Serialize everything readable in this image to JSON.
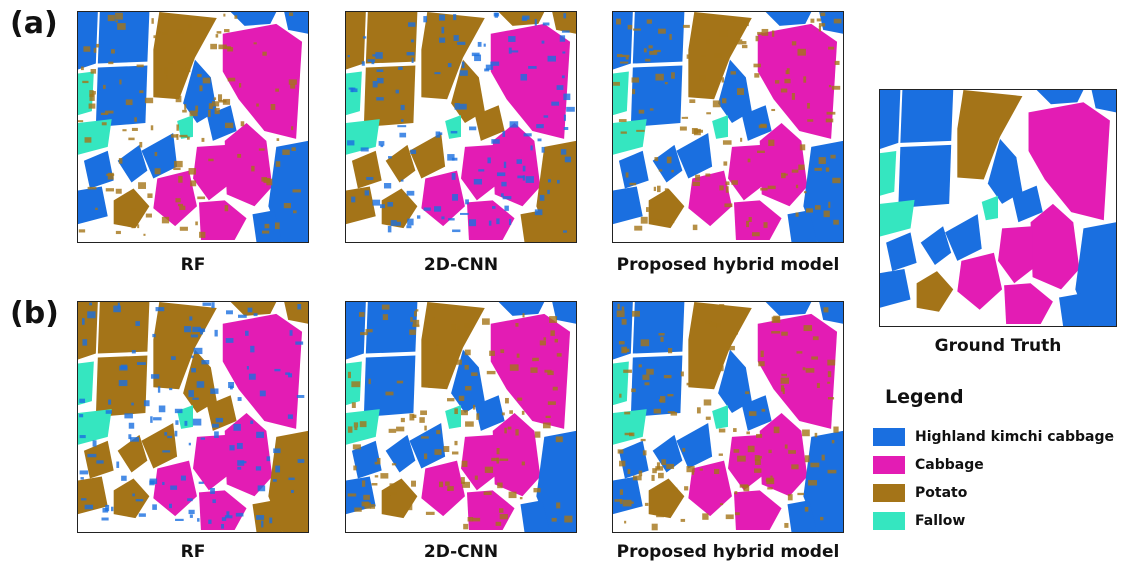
{
  "rows": [
    {
      "label": "(a)",
      "captions": [
        "RF",
        "2D-CNN",
        "Proposed hybrid model"
      ]
    },
    {
      "label": "(b)",
      "captions": [
        "RF",
        "2D-CNN",
        "Proposed hybrid model"
      ]
    }
  ],
  "ground_truth": {
    "caption": "Ground Truth"
  },
  "legend": {
    "title": "Legend",
    "items": [
      {
        "label": "Highland kimchi cabbage",
        "color": "#1a6fe0"
      },
      {
        "label": "Cabbage",
        "color": "#e31cb4"
      },
      {
        "label": "Potato",
        "color": "#a47418"
      },
      {
        "label": "Fallow",
        "color": "#35e6c0"
      }
    ]
  }
}
